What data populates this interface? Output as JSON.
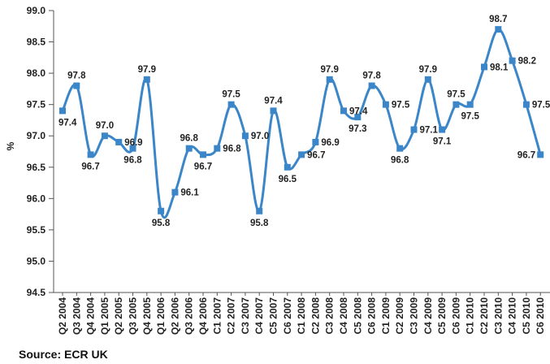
{
  "source": "Source: ECR UK",
  "chart_data": {
    "type": "line",
    "ylabel": "%",
    "ylim": [
      94.5,
      99.0
    ],
    "yticks": [
      "99.0",
      "98.5",
      "98.0",
      "97.5",
      "97.0",
      "96.5",
      "96.0",
      "95.5",
      "95.0",
      "94.5"
    ],
    "line_color": "#3a86c8",
    "categories": [
      "Q2 2004",
      "Q3 2004",
      "Q4 2004",
      "Q1 2005",
      "Q2 2005",
      "Q3 2005",
      "Q4 2005",
      "Q1 2006",
      "Q2 2006",
      "Q3 2006",
      "Q4 2006",
      "C1 2007",
      "C2 2007",
      "C3 2007",
      "C4 2007",
      "C5 2007",
      "C6 2007",
      "C1 2008",
      "C2 2008",
      "C3 2008",
      "C4 2008",
      "C5 2008",
      "C6 2008",
      "C1 2009",
      "C2 2009",
      "C3 2009",
      "C4 2009",
      "C5 2009",
      "C6 2009",
      "C1 2010",
      "C2 2010",
      "C3 2010",
      "C4 2010",
      "C5 2010",
      "C6 2010"
    ],
    "values": [
      97.4,
      97.8,
      96.7,
      97.0,
      96.9,
      96.8,
      97.9,
      95.8,
      96.1,
      96.8,
      96.7,
      96.8,
      97.5,
      97.0,
      95.8,
      97.4,
      96.5,
      96.7,
      96.9,
      97.9,
      97.4,
      97.3,
      97.8,
      97.5,
      96.8,
      97.1,
      97.9,
      97.1,
      97.5,
      97.5,
      98.1,
      98.7,
      98.2,
      97.5,
      96.7
    ],
    "point_labels": [
      "97.4",
      "97.8",
      "96.7",
      "97.0",
      "96.9",
      "96.8",
      "97.9",
      "95.8",
      "96.1",
      "96.8",
      "96.7",
      "96.8",
      "97.5",
      "97.0",
      "95.8",
      "97.4",
      "96.5",
      "96.7",
      "96.9",
      "97.9",
      "97.4",
      "97.3",
      "97.8",
      "97.5",
      "96.8",
      "97.1",
      "97.9",
      "97.1",
      "97.5",
      "97.5",
      "98.1",
      "98.7",
      "98.2",
      "97.5",
      "96.7"
    ]
  }
}
